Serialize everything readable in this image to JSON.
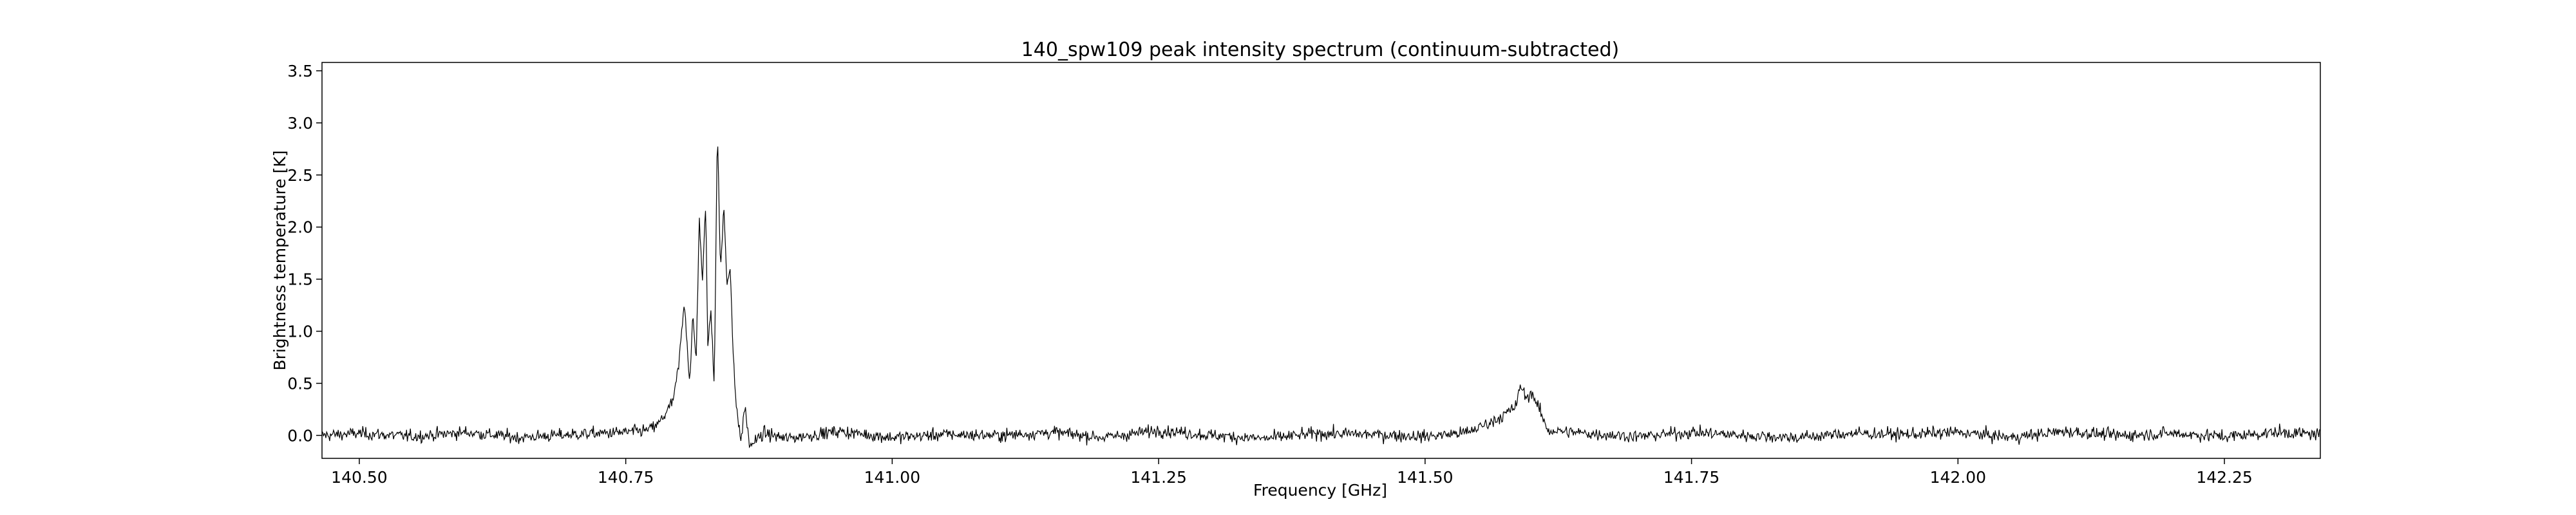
{
  "chart_data": {
    "type": "line",
    "title": "140_spw109 peak intensity spectrum (continuum-subtracted)",
    "xlabel": "Frequency [GHz]",
    "ylabel": "Brightness temperature [K]",
    "xlim": [
      140.465,
      142.34
    ],
    "ylim": [
      -0.22,
      3.58
    ],
    "x_ticks": [
      140.5,
      140.75,
      141.0,
      141.25,
      141.5,
      141.75,
      142.0,
      142.25
    ],
    "x_tick_labels": [
      "140.50",
      "140.75",
      "141.00",
      "141.25",
      "141.50",
      "141.75",
      "142.00",
      "142.25"
    ],
    "y_ticks": [
      0.0,
      0.5,
      1.0,
      1.5,
      2.0,
      2.5,
      3.0,
      3.5
    ],
    "y_tick_labels": [
      "0.0",
      "0.5",
      "1.0",
      "1.5",
      "2.0",
      "2.5",
      "3.0",
      "3.5"
    ],
    "grid": false,
    "line_color": "#000000",
    "series": [
      {
        "x": [
          140.465,
          140.5,
          140.55,
          140.6,
          140.65,
          140.7,
          140.75,
          140.77,
          140.78,
          140.79,
          140.795,
          140.8,
          140.805,
          140.81,
          140.813,
          140.816,
          140.819,
          140.822,
          140.825,
          140.827,
          140.83,
          140.833,
          140.836,
          140.839,
          140.842,
          140.845,
          140.848,
          140.851,
          140.854,
          140.858,
          140.862,
          140.866,
          140.88,
          140.9,
          140.95,
          141.0,
          141.05,
          141.1,
          141.15,
          141.2,
          141.25,
          141.3,
          141.35,
          141.4,
          141.45,
          141.5,
          141.54,
          141.56,
          141.575,
          141.585,
          141.59,
          141.595,
          141.6,
          141.605,
          141.615,
          141.65,
          141.7,
          141.75,
          141.8,
          141.85,
          141.9,
          141.95,
          142.0,
          142.05,
          142.1,
          142.15,
          142.2,
          142.25,
          142.3,
          142.34
        ],
        "y": [
          0.0,
          0.02,
          -0.01,
          0.03,
          -0.02,
          0.01,
          0.03,
          0.05,
          0.1,
          0.25,
          0.35,
          0.7,
          1.3,
          0.5,
          1.15,
          0.7,
          2.1,
          1.45,
          2.25,
          0.85,
          1.2,
          0.5,
          2.95,
          1.55,
          2.2,
          1.45,
          1.65,
          0.7,
          0.25,
          -0.05,
          0.28,
          -0.1,
          0.02,
          -0.03,
          0.04,
          -0.02,
          0.01,
          0.0,
          0.03,
          -0.02,
          0.05,
          0.0,
          -0.03,
          0.02,
          0.01,
          -0.01,
          0.03,
          0.12,
          0.2,
          0.28,
          0.48,
          0.35,
          0.42,
          0.3,
          0.05,
          0.02,
          -0.01,
          0.03,
          0.0,
          -0.02,
          0.02,
          0.01,
          0.03,
          -0.02,
          0.04,
          0.0,
          0.02,
          -0.01,
          0.03,
          0.01
        ],
        "noise_rms": 0.05
      }
    ]
  }
}
